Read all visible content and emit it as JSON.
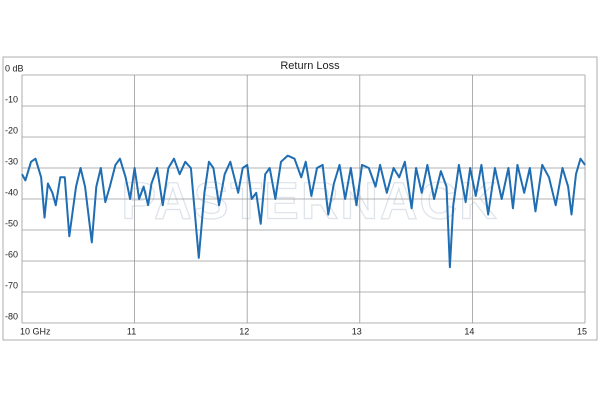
{
  "chart_data": {
    "type": "line",
    "title": "Return Loss",
    "watermark": "PASTERNACK",
    "x": [
      10.0,
      10.03,
      10.08,
      10.12,
      10.17,
      10.2,
      10.23,
      10.27,
      10.3,
      10.34,
      10.38,
      10.42,
      10.45,
      10.48,
      10.52,
      10.56,
      10.62,
      10.66,
      10.7,
      10.74,
      10.78,
      10.83,
      10.87,
      10.92,
      10.96,
      11.0,
      11.04,
      11.08,
      11.12,
      11.15,
      11.2,
      11.25,
      11.3,
      11.35,
      11.4,
      11.45,
      11.5,
      11.57,
      11.62,
      11.66,
      11.7,
      11.75,
      11.8,
      11.85,
      11.92,
      11.96,
      12.0,
      12.04,
      12.08,
      12.12,
      12.16,
      12.2,
      12.25,
      12.3,
      12.36,
      12.42,
      12.48,
      12.52,
      12.57,
      12.62,
      12.67,
      12.72,
      12.77,
      12.82,
      12.87,
      12.92,
      12.97,
      13.02,
      13.08,
      13.14,
      13.18,
      13.24,
      13.3,
      13.35,
      13.4,
      13.46,
      13.5,
      13.55,
      13.6,
      13.66,
      13.72,
      13.77,
      13.8,
      13.83,
      13.88,
      13.94,
      13.98,
      14.03,
      14.08,
      14.14,
      14.2,
      14.26,
      14.32,
      14.36,
      14.4,
      14.46,
      14.51,
      14.56,
      14.62,
      14.68,
      14.74,
      14.8,
      14.85,
      14.88,
      14.92,
      14.96,
      15.0
    ],
    "values": [
      -32,
      -34,
      -28,
      -27,
      -33,
      -46,
      -35,
      -38,
      -42,
      -33,
      -33,
      -52,
      -44,
      -36,
      -30,
      -36,
      -54,
      -36,
      -30,
      -41,
      -36,
      -29,
      -27,
      -33,
      -40,
      -30,
      -40,
      -36,
      -42,
      -35,
      -30,
      -42,
      -30,
      -27,
      -32,
      -28,
      -30,
      -59,
      -38,
      -28,
      -30,
      -42,
      -32,
      -28,
      -38,
      -30,
      -29,
      -40,
      -38,
      -48,
      -32,
      -30,
      -40,
      -28,
      -26,
      -27,
      -33,
      -28,
      -39,
      -30,
      -29,
      -45,
      -35,
      -29,
      -40,
      -30,
      -42,
      -29,
      -30,
      -36,
      -29,
      -38,
      -30,
      -33,
      -28,
      -43,
      -30,
      -38,
      -29,
      -40,
      -31,
      -36,
      -62,
      -42,
      -29,
      -41,
      -30,
      -39,
      -29,
      -45,
      -30,
      -40,
      -30,
      -43,
      -29,
      -38,
      -30,
      -44,
      -29,
      -33,
      -42,
      -30,
      -36,
      -45,
      -32,
      -27,
      -29
    ],
    "color": "#1f6db3",
    "xlim": [
      10,
      15
    ],
    "xticks": [
      {
        "value": 10,
        "label": "10 GHz"
      },
      11,
      12,
      13,
      14,
      15
    ],
    "ylim": [
      -80,
      0
    ],
    "yticks": [
      {
        "value": 0,
        "label": "0 dB"
      },
      -10,
      -20,
      -30,
      -40,
      -50,
      -60,
      -70,
      -80
    ],
    "grid": true
  }
}
